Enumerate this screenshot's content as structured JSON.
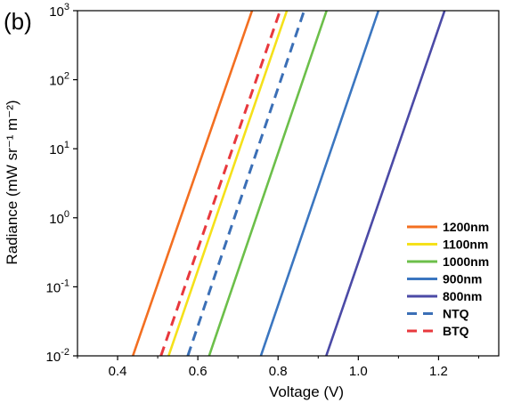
{
  "panel_label": "(b)",
  "chart_data": {
    "type": "line",
    "xlabel": "Voltage (V)",
    "ylabel": "Radiance (mW sr⁻¹ m⁻²)",
    "yscale": "log",
    "xlim": [
      0.3,
      1.35
    ],
    "ylim": [
      0.01,
      1000
    ],
    "x_ticks": [
      0.4,
      0.6,
      0.8,
      1.0,
      1.2
    ],
    "x_tick_labels": [
      "0.4",
      "0.6",
      "0.8",
      "1.0",
      "1.2"
    ],
    "y_ticks": [
      0.01,
      0.1,
      1,
      10,
      100,
      1000
    ],
    "y_tick_labels": [
      {
        "base": "10",
        "exp": "-2"
      },
      {
        "base": "10",
        "exp": "-1"
      },
      {
        "base": "10",
        "exp": "0"
      },
      {
        "base": "10",
        "exp": "1"
      },
      {
        "base": "10",
        "exp": "2"
      },
      {
        "base": "10",
        "exp": "3"
      }
    ],
    "grid": false,
    "legend_position": "lower-right",
    "series": [
      {
        "name": "1200nm",
        "color": "#f36f21",
        "dash": false,
        "points": [
          [
            0.438,
            0.01
          ],
          [
            0.735,
            1000
          ]
        ]
      },
      {
        "name": "1100nm",
        "color": "#f5e11a",
        "dash": false,
        "points": [
          [
            0.527,
            0.01
          ],
          [
            0.822,
            1000
          ]
        ]
      },
      {
        "name": "1000nm",
        "color": "#6cbf4a",
        "dash": false,
        "points": [
          [
            0.628,
            0.01
          ],
          [
            0.921,
            1000
          ]
        ]
      },
      {
        "name": "900nm",
        "color": "#3b76c0",
        "dash": false,
        "points": [
          [
            0.757,
            0.01
          ],
          [
            1.05,
            1000
          ]
        ]
      },
      {
        "name": "800nm",
        "color": "#4b4aa6",
        "dash": false,
        "points": [
          [
            0.92,
            0.01
          ],
          [
            1.215,
            1000
          ]
        ]
      },
      {
        "name": "NTQ",
        "color": "#3b6fb6",
        "dash": true,
        "points": [
          [
            0.575,
            0.01
          ],
          [
            0.865,
            1000
          ]
        ]
      },
      {
        "name": "BTQ",
        "color": "#e8383d",
        "dash": true,
        "points": [
          [
            0.508,
            0.01
          ],
          [
            0.805,
            1000
          ]
        ]
      }
    ]
  }
}
